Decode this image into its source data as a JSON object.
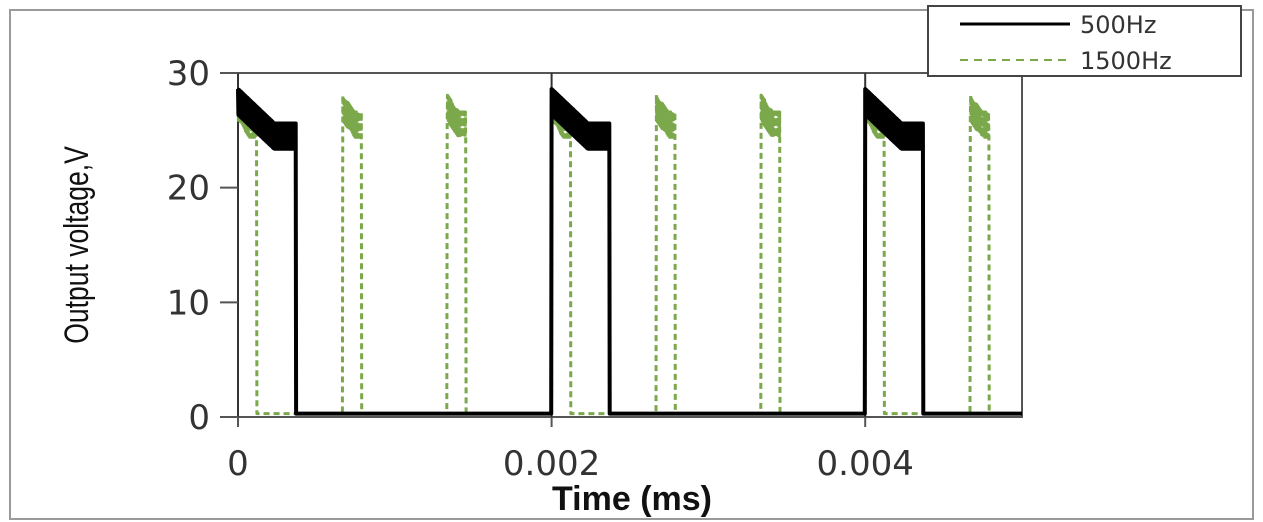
{
  "chart_data": {
    "type": "line",
    "title": "",
    "xlabel": "Time (ms)",
    "ylabel": "Output voltage,V",
    "xlim": [
      0,
      0.005
    ],
    "ylim": [
      0,
      30
    ],
    "x_ticks": [
      0,
      0.002,
      0.004
    ],
    "x_tick_labels": [
      "0",
      "0.002",
      "0.004"
    ],
    "y_ticks": [
      0,
      10,
      20,
      30
    ],
    "y_tick_labels": [
      "0",
      "10",
      "20",
      "30"
    ],
    "grid": "vertical lines at 0, 0.002, 0.004",
    "legend_position": "top-right",
    "series": [
      {
        "name": "500Hz",
        "color": "#000000",
        "style": "solid",
        "period": 0.002,
        "on_duration": 0.00037,
        "on_level": 24.5,
        "on_start_level": 27.5,
        "off_level": 0.3
      },
      {
        "name": "1500Hz",
        "color": "#7aa84a",
        "style": "dashed",
        "period": 0.000667,
        "on_duration": 0.00012,
        "on_level": 25.5,
        "on_start_level": 27,
        "off_level": 0.3
      }
    ]
  }
}
